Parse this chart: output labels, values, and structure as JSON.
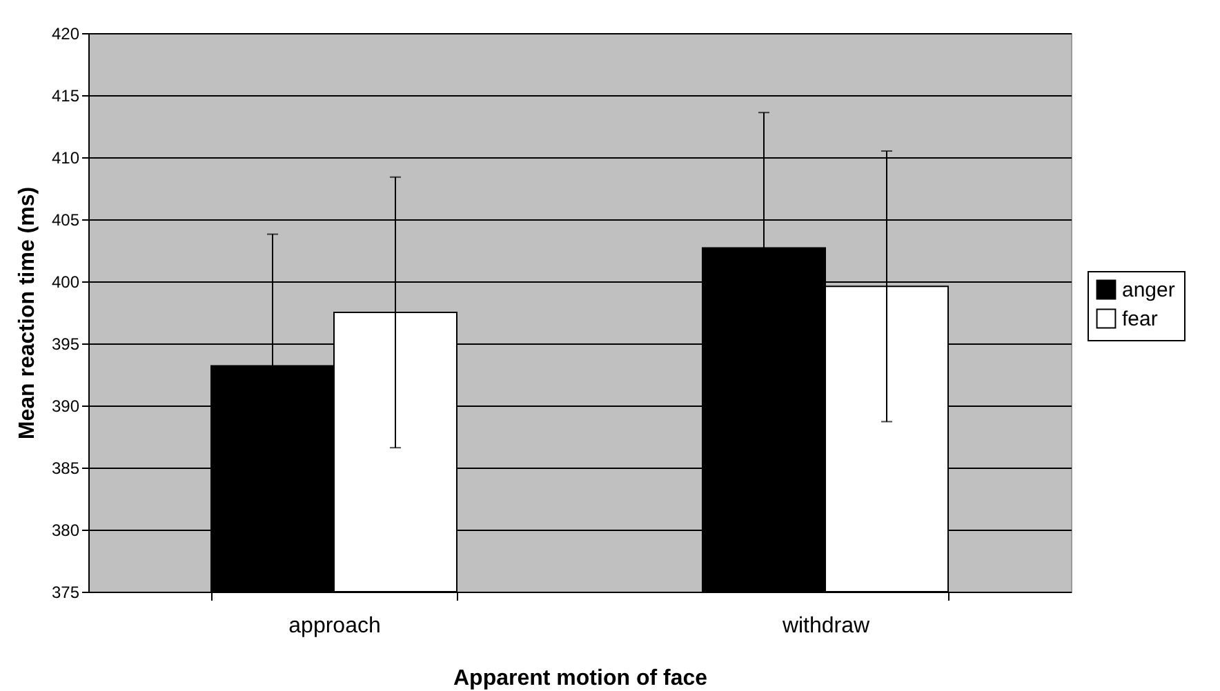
{
  "chart_data": {
    "type": "bar",
    "xlabel": "Apparent motion of face",
    "ylabel": "Mean reaction time (ms)",
    "categories": [
      "approach",
      "withdraw"
    ],
    "series": [
      {
        "name": "anger",
        "color": "#000000",
        "values": [
          393.2,
          402.7
        ],
        "errors": [
          10.6,
          10.9
        ]
      },
      {
        "name": "fear",
        "color": "#ffffff",
        "values": [
          397.5,
          399.6
        ],
        "errors": [
          10.9,
          10.9
        ]
      }
    ],
    "ylim": [
      375,
      420
    ],
    "yticks": [
      375,
      380,
      385,
      390,
      395,
      400,
      405,
      410,
      415,
      420
    ],
    "grid": "y",
    "legend": "right"
  }
}
